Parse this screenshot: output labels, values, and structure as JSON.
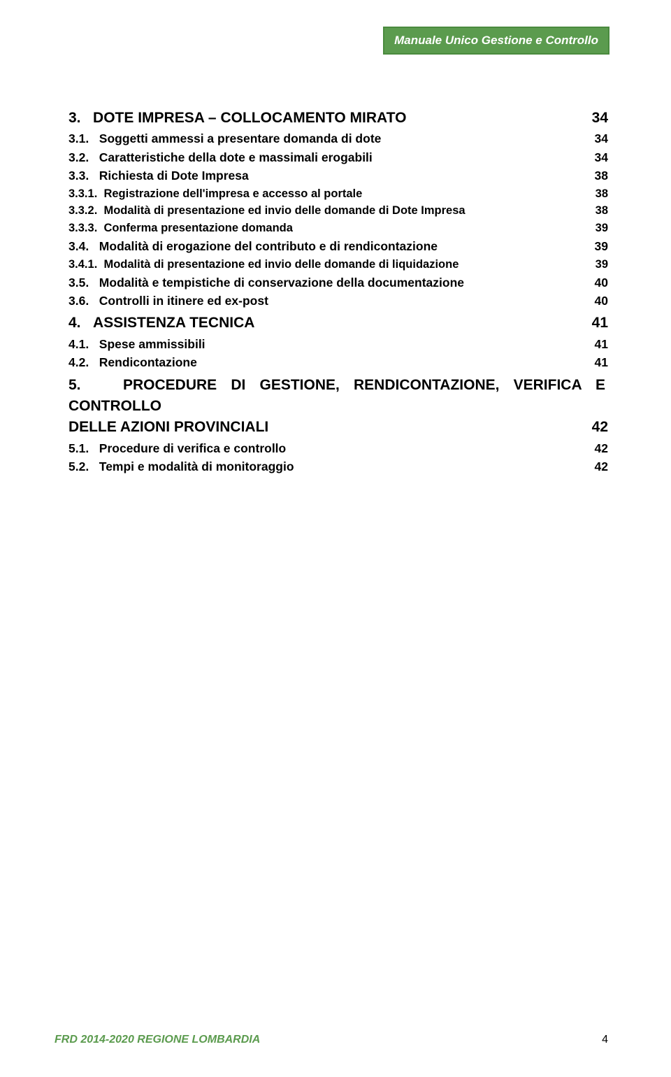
{
  "header": {
    "title": "Manuale Unico Gestione e Controllo"
  },
  "toc": [
    {
      "level": "section",
      "num": "3.",
      "title": "DOTE IMPRESA – COLLOCAMENTO MIRATO",
      "page": "34"
    },
    {
      "level": "sub",
      "num": "3.1.",
      "title": "Soggetti ammessi a presentare domanda di dote",
      "page": "34"
    },
    {
      "level": "sub",
      "num": "3.2.",
      "title": "Caratteristiche della dote e massimali erogabili",
      "page": "34"
    },
    {
      "level": "sub",
      "num": "3.3.",
      "title": "Richiesta di Dote Impresa",
      "page": "38"
    },
    {
      "level": "subsub",
      "num": "3.3.1.",
      "title": "Registrazione dell'impresa e accesso al portale",
      "page": "38"
    },
    {
      "level": "subsub",
      "num": "3.3.2.",
      "title": "Modalità di presentazione ed invio delle domande di Dote Impresa",
      "page": "38"
    },
    {
      "level": "subsub",
      "num": "3.3.3.",
      "title": "Conferma presentazione domanda",
      "page": "39"
    },
    {
      "level": "sub",
      "num": "3.4.",
      "title": "Modalità di erogazione del contributo e di rendicontazione",
      "page": "39"
    },
    {
      "level": "subsub",
      "num": "3.4.1.",
      "title": "Modalità di presentazione ed invio delle domande di liquidazione",
      "page": "39"
    },
    {
      "level": "sub",
      "num": "3.5.",
      "title": "Modalità e tempistiche di conservazione della documentazione",
      "page": "40"
    },
    {
      "level": "sub",
      "num": "3.6.",
      "title": "Controlli in itinere ed ex-post",
      "page": "40"
    },
    {
      "level": "section",
      "num": "4.",
      "title": "ASSISTENZA TECNICA",
      "page": "41"
    },
    {
      "level": "sub",
      "num": "4.1.",
      "title": "Spese ammissibili",
      "page": "41"
    },
    {
      "level": "sub",
      "num": "4.2.",
      "title": "Rendicontazione",
      "page": "41"
    },
    {
      "level": "section-justify",
      "num": "5.",
      "title_line1": "PROCEDURE DI GESTIONE, RENDICONTAZIONE, VERIFICA E CONTROLLO",
      "title_line2": "DELLE AZIONI PROVINCIALI",
      "page": "42"
    },
    {
      "level": "sub",
      "num": "5.1.",
      "title": "Procedure di verifica e controllo",
      "page": "42"
    },
    {
      "level": "sub",
      "num": "5.2.",
      "title": "Tempi e modalità di monitoraggio",
      "page": "42"
    }
  ],
  "footer": {
    "left": "FRD 2014-2020 REGIONE LOMBARDIA",
    "pagenum": "4"
  },
  "colors": {
    "accent": "#5b9b4e",
    "text": "#000000",
    "bg": "#ffffff"
  }
}
